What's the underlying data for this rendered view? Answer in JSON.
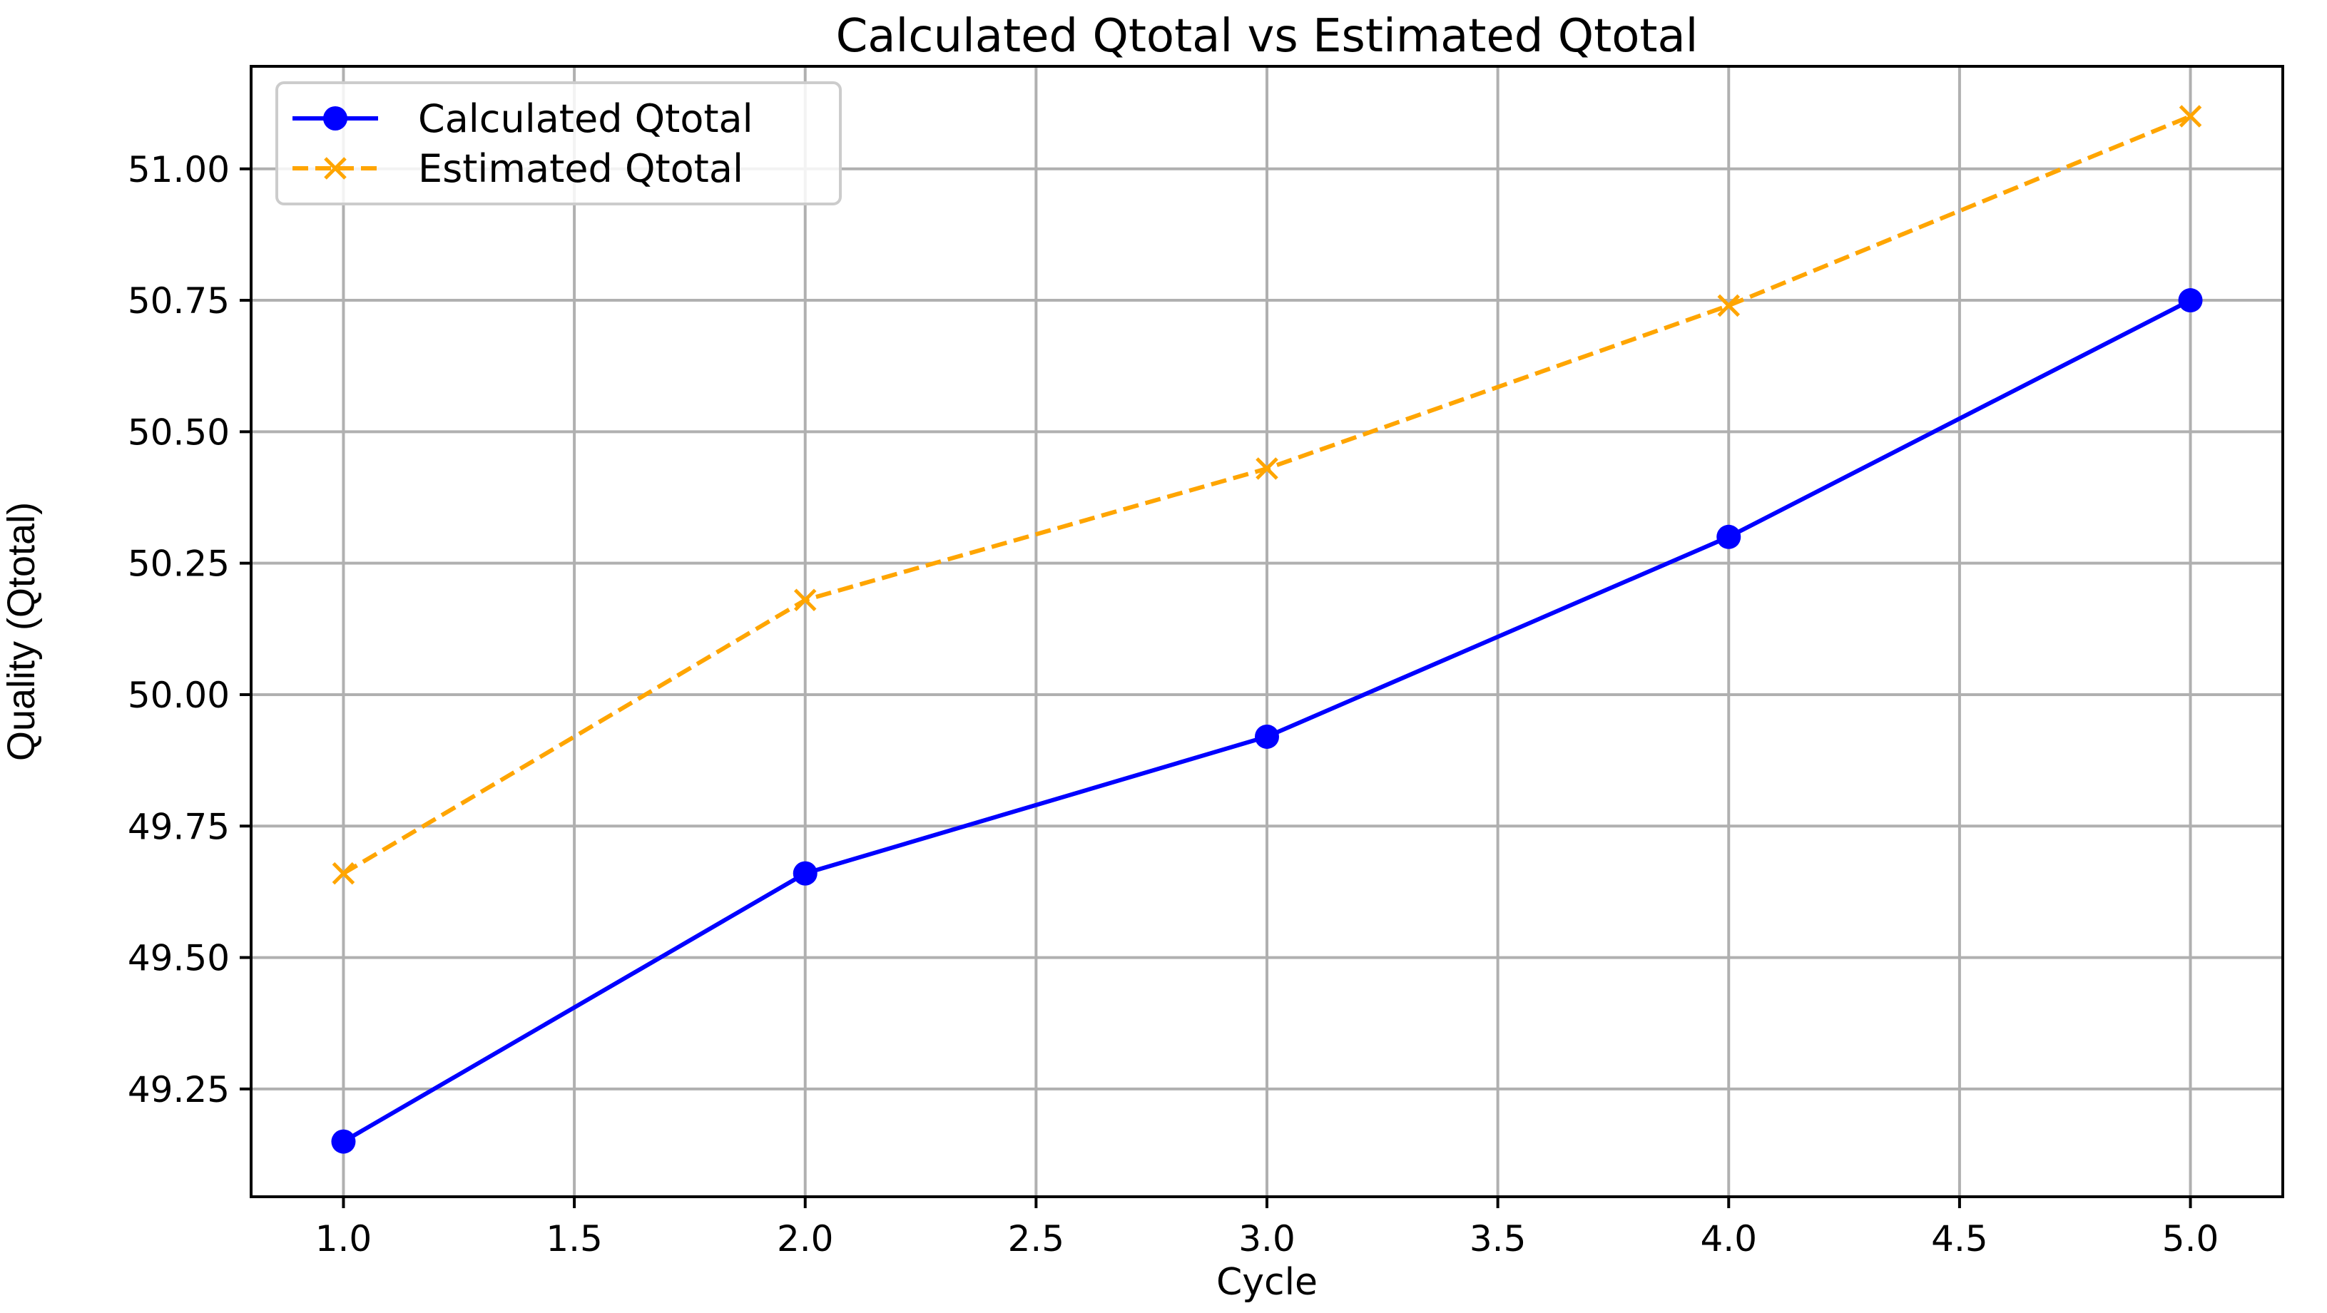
{
  "chart_data": {
    "type": "line",
    "title": "Calculated Qtotal vs Estimated Qtotal",
    "xlabel": "Cycle",
    "ylabel": "Quality (Qtotal)",
    "xlim": [
      0.8,
      5.2
    ],
    "ylim": [
      49.045,
      51.195
    ],
    "x": [
      1.0,
      2.0,
      3.0,
      4.0,
      5.0
    ],
    "xticks": [
      1.0,
      1.5,
      2.0,
      2.5,
      3.0,
      3.5,
      4.0,
      4.5,
      5.0
    ],
    "xtick_labels": [
      "1.0",
      "1.5",
      "2.0",
      "2.5",
      "3.0",
      "3.5",
      "4.0",
      "4.5",
      "5.0"
    ],
    "yticks": [
      49.25,
      49.5,
      49.75,
      50.0,
      50.25,
      50.5,
      50.75,
      51.0
    ],
    "ytick_labels": [
      "49.25",
      "49.50",
      "49.75",
      "50.00",
      "50.25",
      "50.50",
      "50.75",
      "51.00"
    ],
    "grid": true,
    "legend_position": "top-left",
    "series": [
      {
        "name": "Calculated Qtotal",
        "values": [
          49.15,
          49.66,
          49.92,
          50.3,
          50.75
        ],
        "color": "#0000ff",
        "linestyle": "solid",
        "marker": "circle"
      },
      {
        "name": "Estimated Qtotal",
        "values": [
          49.66,
          50.18,
          50.43,
          50.74,
          51.1
        ],
        "color": "#ffa500",
        "linestyle": "dashed",
        "marker": "x"
      }
    ]
  }
}
